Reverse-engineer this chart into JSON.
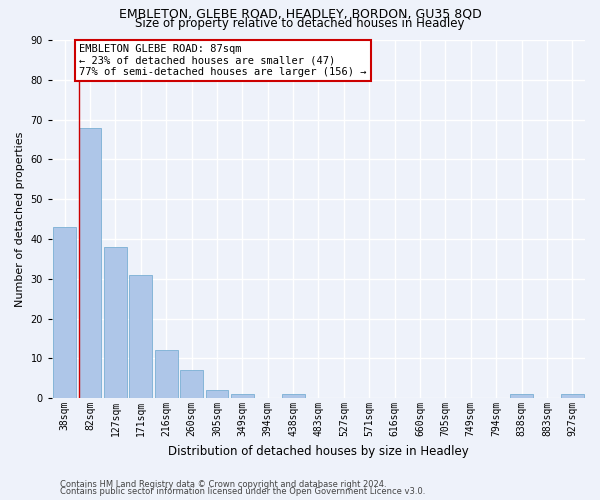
{
  "title1": "EMBLETON, GLEBE ROAD, HEADLEY, BORDON, GU35 8QD",
  "title2": "Size of property relative to detached houses in Headley",
  "xlabel": "Distribution of detached houses by size in Headley",
  "ylabel": "Number of detached properties",
  "categories": [
    "38sqm",
    "82sqm",
    "127sqm",
    "171sqm",
    "216sqm",
    "260sqm",
    "305sqm",
    "349sqm",
    "394sqm",
    "438sqm",
    "483sqm",
    "527sqm",
    "571sqm",
    "616sqm",
    "660sqm",
    "705sqm",
    "749sqm",
    "794sqm",
    "838sqm",
    "883sqm",
    "927sqm"
  ],
  "values": [
    43,
    68,
    38,
    31,
    12,
    7,
    2,
    1,
    0,
    1,
    0,
    0,
    0,
    0,
    0,
    0,
    0,
    0,
    1,
    0,
    1
  ],
  "bar_color": "#aec6e8",
  "bar_edge_color": "#7aafd4",
  "background_color": "#eef2fa",
  "grid_color": "#ffffff",
  "annotation_text": "EMBLETON GLEBE ROAD: 87sqm\n← 23% of detached houses are smaller (47)\n77% of semi-detached houses are larger (156) →",
  "annotation_box_color": "#ffffff",
  "annotation_box_edge_color": "#cc0000",
  "marker_line_color": "#cc0000",
  "ylim": [
    0,
    90
  ],
  "yticks": [
    0,
    10,
    20,
    30,
    40,
    50,
    60,
    70,
    80,
    90
  ],
  "footnote1": "Contains HM Land Registry data © Crown copyright and database right 2024.",
  "footnote2": "Contains public sector information licensed under the Open Government Licence v3.0.",
  "title1_fontsize": 9,
  "title2_fontsize": 8.5,
  "ylabel_fontsize": 8,
  "xlabel_fontsize": 8.5,
  "tick_fontsize": 7,
  "footnote_fontsize": 6,
  "ann_fontsize": 7.5
}
